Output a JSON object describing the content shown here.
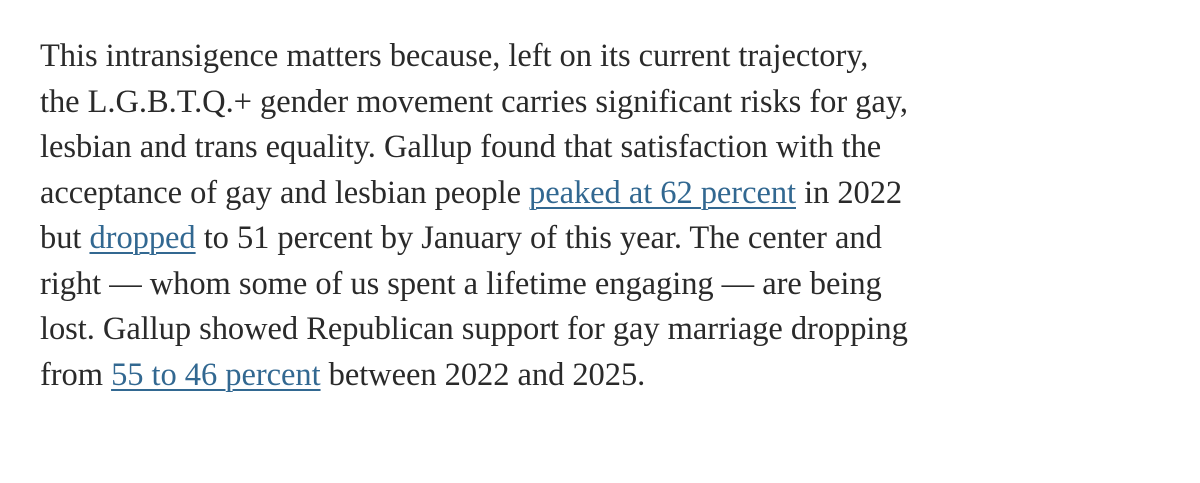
{
  "paragraph": {
    "lines": [
      {
        "text": "This intransigence matters because, left on its current trajectory,"
      },
      {
        "text": "the L.G.B.T.Q.+ gender movement carries significant risks for gay,"
      },
      {
        "text": "lesbian and trans equality. Gallup found that satisfaction with the"
      },
      {
        "before": "acceptance of gay and lesbian people ",
        "link": "peaked at 62 percent",
        "after": " in 2022"
      },
      {
        "before": "but ",
        "link": "dropped",
        "after": " to 51 percent by January of this year. The center and"
      },
      {
        "text": "right — whom some of us spent a lifetime engaging — are being"
      },
      {
        "text": "lost. Gallup showed Republican support for gay marriage dropping"
      },
      {
        "before": "from ",
        "link": "55 to 46 percent",
        "after": " between 2022 and 2025."
      }
    ]
  },
  "colors": {
    "text": "#2a2a2a",
    "link": "#326891",
    "background": "#ffffff"
  }
}
